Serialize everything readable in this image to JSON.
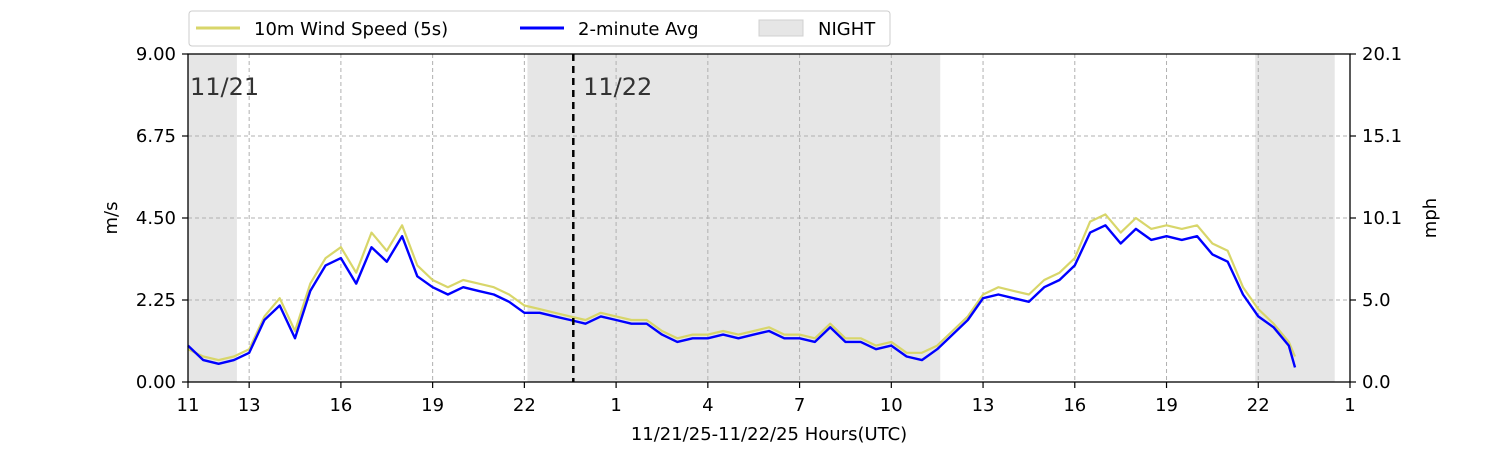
{
  "chart_data": {
    "type": "line",
    "title": "",
    "xlabel": "11/21/25-11/22/25  Hours(UTC)",
    "ylabel": "m/s",
    "ylabel_right": "mph",
    "x_tick_labels": [
      "11",
      "13",
      "16",
      "19",
      "22",
      "1",
      "4",
      "7",
      "10",
      "13",
      "16",
      "19",
      "22",
      "1"
    ],
    "x_tick_hours": [
      11,
      13,
      16,
      19,
      22,
      25,
      28,
      31,
      34,
      37,
      40,
      43,
      46,
      49
    ],
    "xlim_hours": [
      11,
      49
    ],
    "ylim": [
      0,
      9
    ],
    "y_ticks": [
      "0.00",
      "2.25",
      "4.50",
      "6.75",
      "9.00"
    ],
    "y_ticks_right": [
      "0.0",
      "5.0",
      "10.1",
      "15.1",
      "20.1"
    ],
    "grid": true,
    "legend": {
      "placement": "top-left, above plot",
      "entries": [
        "10m Wind Speed (5s)",
        "2-minute Avg",
        "NIGHT"
      ]
    },
    "night_periods_hours": [
      [
        11,
        12.6
      ],
      [
        22.1,
        35.6
      ],
      [
        45.9,
        48.5
      ]
    ],
    "day_divider_hour": 23.6,
    "day_labels": [
      {
        "text": "11/21",
        "hour": 11
      },
      {
        "text": "11/22",
        "hour": 25
      }
    ],
    "series": [
      {
        "name": "10m Wind Speed (5s)",
        "color": "#d8d66a",
        "x": [
          11,
          11.5,
          12,
          12.5,
          13,
          13.5,
          14,
          14.5,
          15,
          15.5,
          16,
          16.5,
          17,
          17.5,
          18,
          18.5,
          19,
          19.5,
          20,
          20.5,
          21,
          21.5,
          22,
          22.5,
          23,
          23.5,
          24,
          24.5,
          25,
          25.5,
          26,
          26.5,
          27,
          27.5,
          28,
          28.5,
          29,
          29.5,
          30,
          30.5,
          31,
          31.5,
          32,
          32.5,
          33,
          33.5,
          34,
          34.5,
          35,
          35.5,
          36,
          36.5,
          37,
          37.5,
          38,
          38.5,
          39,
          39.5,
          40,
          40.5,
          41,
          41.5,
          42,
          42.5,
          43,
          43.5,
          44,
          44.5,
          45,
          45.5,
          46,
          46.5,
          47,
          47.2
        ],
        "values": [
          0.9,
          0.7,
          0.6,
          0.7,
          0.9,
          1.8,
          2.3,
          1.4,
          2.7,
          3.4,
          3.7,
          3.0,
          4.1,
          3.6,
          4.3,
          3.2,
          2.8,
          2.6,
          2.8,
          2.7,
          2.6,
          2.4,
          2.1,
          2.0,
          1.9,
          1.8,
          1.7,
          1.9,
          1.8,
          1.7,
          1.7,
          1.4,
          1.2,
          1.3,
          1.3,
          1.4,
          1.3,
          1.4,
          1.5,
          1.3,
          1.3,
          1.2,
          1.6,
          1.2,
          1.2,
          1.0,
          1.1,
          0.8,
          0.8,
          1.0,
          1.4,
          1.8,
          2.4,
          2.6,
          2.5,
          2.4,
          2.8,
          3.0,
          3.4,
          4.4,
          4.6,
          4.1,
          4.5,
          4.2,
          4.3,
          4.2,
          4.3,
          3.8,
          3.6,
          2.6,
          2.0,
          1.6,
          1.1,
          0.7
        ]
      },
      {
        "name": "2-minute Avg",
        "color": "#0000ff",
        "x": [
          11,
          11.5,
          12,
          12.5,
          13,
          13.5,
          14,
          14.5,
          15,
          15.5,
          16,
          16.5,
          17,
          17.5,
          18,
          18.5,
          19,
          19.5,
          20,
          20.5,
          21,
          21.5,
          22,
          22.5,
          23,
          23.5,
          24,
          24.5,
          25,
          25.5,
          26,
          26.5,
          27,
          27.5,
          28,
          28.5,
          29,
          29.5,
          30,
          30.5,
          31,
          31.5,
          32,
          32.5,
          33,
          33.5,
          34,
          34.5,
          35,
          35.5,
          36,
          36.5,
          37,
          37.5,
          38,
          38.5,
          39,
          39.5,
          40,
          40.5,
          41,
          41.5,
          42,
          42.5,
          43,
          43.5,
          44,
          44.5,
          45,
          45.5,
          46,
          46.5,
          47,
          47.2
        ],
        "values": [
          1.0,
          0.6,
          0.5,
          0.6,
          0.8,
          1.7,
          2.1,
          1.2,
          2.5,
          3.2,
          3.4,
          2.7,
          3.7,
          3.3,
          4.0,
          2.9,
          2.6,
          2.4,
          2.6,
          2.5,
          2.4,
          2.2,
          1.9,
          1.9,
          1.8,
          1.7,
          1.6,
          1.8,
          1.7,
          1.6,
          1.6,
          1.3,
          1.1,
          1.2,
          1.2,
          1.3,
          1.2,
          1.3,
          1.4,
          1.2,
          1.2,
          1.1,
          1.5,
          1.1,
          1.1,
          0.9,
          1.0,
          0.7,
          0.6,
          0.9,
          1.3,
          1.7,
          2.3,
          2.4,
          2.3,
          2.2,
          2.6,
          2.8,
          3.2,
          4.1,
          4.3,
          3.8,
          4.2,
          3.9,
          4.0,
          3.9,
          4.0,
          3.5,
          3.3,
          2.4,
          1.8,
          1.5,
          1.0,
          0.4
        ]
      }
    ]
  }
}
